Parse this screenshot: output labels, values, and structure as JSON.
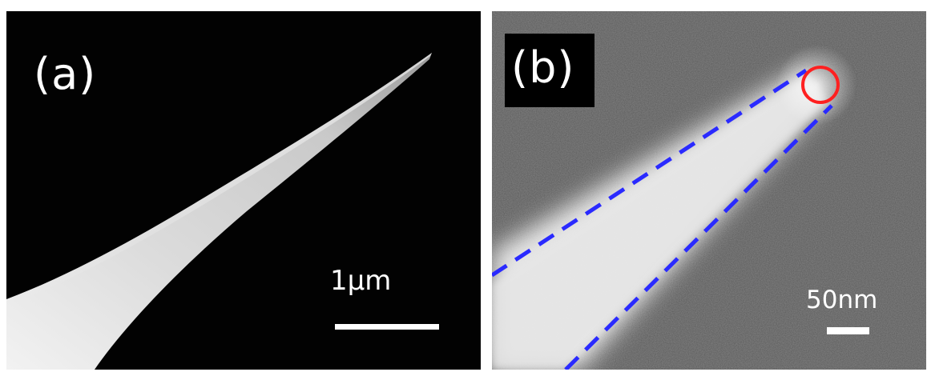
{
  "figure": {
    "panels": [
      {
        "label": "(a)",
        "scale_bar": {
          "text": "1μm"
        }
      },
      {
        "label": "(b)",
        "scale_bar": {
          "text": "50nm"
        }
      }
    ],
    "colors": {
      "background_a": "#020202",
      "background_b": "#5a5a5a",
      "tip": "#d9d9d9",
      "dashed_outline": "#2a2aff",
      "apex_circle": "#ff2020",
      "text": "#ffffff"
    }
  }
}
